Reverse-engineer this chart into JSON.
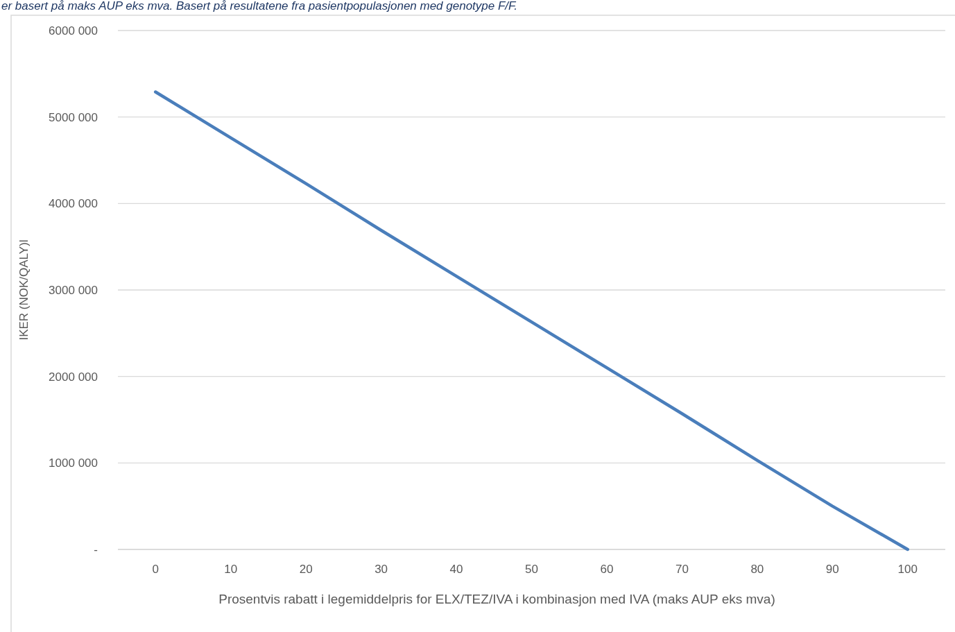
{
  "chart_data": {
    "type": "line",
    "subtitle": "er basert på maks AUP eks mva. Basert på resultatene fra pasientpopulasjonen med genotype F/F.",
    "xlabel": "Prosentvis rabatt i legemiddelpris for ELX/TEZ/IVA i kombinasjon med IVA  (maks AUP eks mva)",
    "ylabel": "IKER (NOK/QALY)l",
    "categories": [
      "0",
      "10",
      "20",
      "30",
      "40",
      "50",
      "60",
      "70",
      "80",
      "90",
      "100"
    ],
    "series": [
      {
        "color": "#4a7ebb",
        "values": [
          5290000,
          4760000,
          4230000,
          3690000,
          3160000,
          2630000,
          2100000,
          1570000,
          1030000,
          500000,
          0
        ]
      }
    ],
    "ylim": [
      0,
      6000000
    ],
    "yticks": [
      {
        "value": 0,
        "label": "-"
      },
      {
        "value": 1000000,
        "label": "1000 000"
      },
      {
        "value": 2000000,
        "label": "2000 000"
      },
      {
        "value": 3000000,
        "label": "3000 000"
      },
      {
        "value": 4000000,
        "label": "4000 000"
      },
      {
        "value": 5000000,
        "label": "5000 000"
      },
      {
        "value": 6000000,
        "label": "6000 000"
      }
    ],
    "grid": "y",
    "marker": "none",
    "line_style": "solid"
  }
}
